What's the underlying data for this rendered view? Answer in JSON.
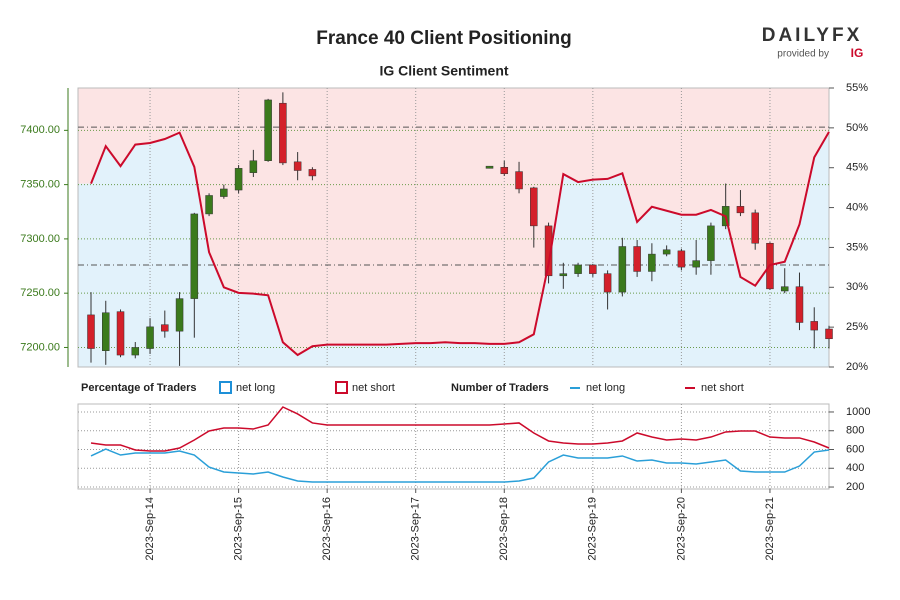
{
  "logo": {
    "brand": "DAILYFX",
    "tagline": "provided by",
    "badge": "IG"
  },
  "chart_data": [
    {
      "type": "candlestick",
      "title": "France 40 Client Positioning",
      "subtitle": "IG Client Sentiment",
      "up_color": "#3b7a1c",
      "down_color": "#d3202a",
      "open": [
        7230,
        7197,
        7233,
        7193,
        7199,
        7221,
        7215,
        7245,
        7323,
        7339,
        7345,
        7361,
        7372,
        7425,
        7371,
        7364,
        null,
        null,
        null,
        null,
        null,
        null,
        null,
        null,
        null,
        null,
        null,
        7365,
        7366,
        7362,
        7347,
        7312,
        7266,
        7268,
        7276,
        7268,
        7251,
        7293,
        7270,
        7286,
        7289,
        7274,
        7280,
        7312,
        7330,
        7324,
        7296,
        7252,
        7256,
        7224,
        7217
      ],
      "high": [
        7251,
        7243,
        7235,
        7205,
        7227,
        7234,
        7251,
        7324,
        7342,
        7350,
        7368,
        7382,
        7429,
        7435,
        7380,
        7366,
        null,
        null,
        null,
        null,
        null,
        null,
        null,
        null,
        null,
        null,
        null,
        7367,
        7372,
        7371,
        7348,
        7315,
        7278,
        7278,
        7277,
        7271,
        7301,
        7299,
        7296,
        7294,
        7291,
        7299,
        7315,
        7351,
        7345,
        7327,
        7297,
        7273,
        7269,
        7237,
        7220
      ],
      "low": [
        7186,
        7184,
        7191,
        7190,
        7194,
        7209,
        7183,
        7209,
        7321,
        7337,
        7342,
        7357,
        7371,
        7368,
        7354,
        7354,
        null,
        null,
        null,
        null,
        null,
        null,
        null,
        null,
        null,
        null,
        null,
        7365,
        7358,
        7342,
        7292,
        7259,
        7254,
        7265,
        7265,
        7235,
        7247,
        7265,
        7261,
        7284,
        7271,
        7267,
        7267,
        7309,
        7321,
        7290,
        7253,
        7250,
        7216,
        7199,
        7199
      ],
      "close": [
        7199,
        7232,
        7193,
        7200,
        7219,
        7215,
        7245,
        7323,
        7340,
        7346,
        7365,
        7372,
        7428,
        7370,
        7363,
        7358,
        null,
        null,
        null,
        null,
        null,
        null,
        null,
        null,
        null,
        null,
        null,
        7367,
        7360,
        7346,
        7312,
        7266,
        7268,
        7276,
        7268,
        7251,
        7293,
        7270,
        7286,
        7290,
        7274,
        7280,
        7312,
        7330,
        7324,
        7296,
        7254,
        7256,
        7223,
        7216,
        7208
      ],
      "ylim": [
        7182,
        7439
      ],
      "yticks": [
        {
          "value": 7200,
          "label": "7200.00"
        },
        {
          "value": 7250,
          "label": "7250.00"
        },
        {
          "value": 7300,
          "label": "7300.00"
        },
        {
          "value": 7350,
          "label": "7350.00"
        },
        {
          "value": 7400,
          "label": "7400.00"
        }
      ],
      "y2lim": [
        20,
        55
      ],
      "y2ticks": [
        {
          "value": 20,
          "label": "20%"
        },
        {
          "value": 25,
          "label": "25%"
        },
        {
          "value": 30,
          "label": "30%"
        },
        {
          "value": 35,
          "label": "35%"
        },
        {
          "value": 40,
          "label": "40%"
        },
        {
          "value": 45,
          "label": "45%"
        },
        {
          "value": 50,
          "label": "50%"
        },
        {
          "value": 55,
          "label": "55%"
        }
      ],
      "reference_lines": [
        7403,
        7276
      ],
      "grid": true,
      "legend_title": "Percentage of Traders",
      "legend": [
        {
          "name": "net long",
          "color": "#1e90d8",
          "fill": "#e2f2fb"
        },
        {
          "name": "net short",
          "color": "#cc0a2b",
          "fill": "#fce4e4"
        }
      ],
      "sentiment": {
        "axis": "y2",
        "color": "#cc0a2b",
        "values": [
          43.0,
          47.7,
          45.2,
          47.9,
          48.1,
          48.6,
          49.4,
          45.1,
          34.4,
          30.0,
          29.3,
          29.2,
          29.0,
          23.1,
          21.5,
          22.6,
          22.8,
          22.8,
          22.8,
          22.8,
          22.8,
          22.9,
          23.0,
          23.0,
          23.1,
          23.0,
          23.0,
          22.9,
          22.9,
          23.1,
          24.1,
          32.9,
          44.2,
          43.2,
          43.5,
          43.6,
          44.3,
          38.2,
          40.1,
          39.6,
          39.1,
          39.1,
          39.7,
          38.9,
          31.3,
          30.2,
          32.8,
          33.2,
          37.9,
          46.3,
          49.5
        ]
      }
    },
    {
      "type": "line",
      "legend_title": "Number of Traders",
      "categories": [
        null,
        null,
        null,
        null,
        "2023-Sep-14",
        null,
        null,
        null,
        null,
        null,
        "2023-Sep-15",
        null,
        null,
        null,
        null,
        null,
        "2023-Sep-16",
        null,
        null,
        null,
        null,
        null,
        "2023-Sep-17",
        null,
        null,
        null,
        null,
        null,
        "2023-Sep-18",
        null,
        null,
        null,
        null,
        null,
        "2023-Sep-19",
        null,
        null,
        null,
        null,
        null,
        "2023-Sep-20",
        null,
        null,
        null,
        null,
        null,
        "2023-Sep-21",
        null,
        null,
        null,
        null
      ],
      "series": [
        {
          "name": "net long",
          "color": "#2a9fd8",
          "values": [
            531,
            605,
            541,
            563,
            563,
            563,
            584,
            541,
            413,
            360,
            349,
            339,
            360,
            307,
            264,
            253,
            253,
            253,
            253,
            253,
            253,
            253,
            253,
            253,
            253,
            253,
            253,
            253,
            253,
            264,
            296,
            467,
            541,
            509,
            509,
            509,
            531,
            477,
            488,
            456,
            456,
            445,
            467,
            488,
            371,
            360,
            360,
            360,
            424,
            573,
            595
          ]
        },
        {
          "name": "net short",
          "color": "#cc0a2b",
          "values": [
            669,
            648,
            648,
            595,
            584,
            584,
            616,
            701,
            797,
            829,
            829,
            819,
            861,
            1053,
            979,
            883,
            861,
            861,
            861,
            861,
            861,
            861,
            861,
            861,
            861,
            861,
            861,
            861,
            872,
            883,
            776,
            691,
            669,
            659,
            659,
            669,
            691,
            776,
            733,
            701,
            712,
            701,
            733,
            787,
            797,
            797,
            733,
            723,
            723,
            680,
            616
          ]
        }
      ],
      "ylim": [
        179,
        1085
      ],
      "yticks": [
        200,
        400,
        600,
        800,
        1000
      ],
      "grid": true
    }
  ]
}
